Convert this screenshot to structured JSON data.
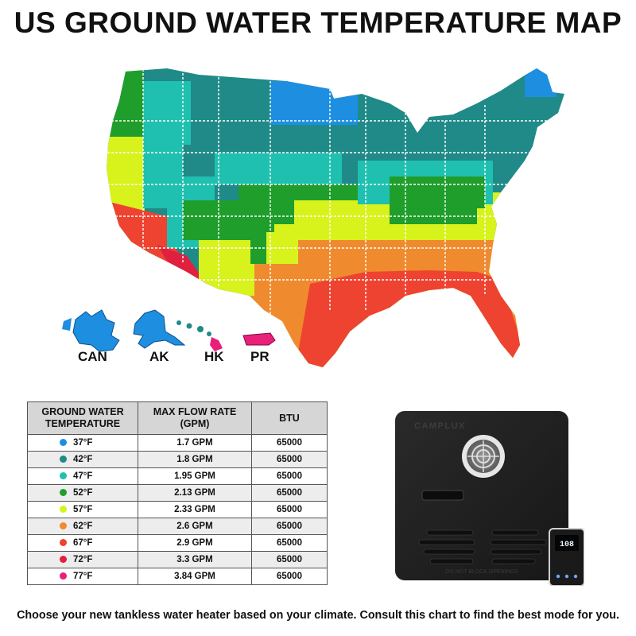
{
  "title": "US GROUND WATER TEMPERATURE MAP",
  "colors": {
    "37F": "#1e8fe0",
    "42F": "#1f8a87",
    "47F": "#20c0b0",
    "52F": "#1f9e2b",
    "57F": "#d8f21c",
    "62F": "#f08a2e",
    "67F": "#ee4330",
    "72F": "#e0203e",
    "77F": "#e8207a"
  },
  "map_labels": {
    "canada": "CAN",
    "alaska": "AK",
    "hawaii": "HK",
    "puerto_rico": "PR"
  },
  "table": {
    "headers": {
      "temperature": "GROUND WATER TEMPERATURE",
      "flow": "MAX FLOW RATE (GPM)",
      "btu": "BTU"
    },
    "rows": [
      {
        "temp": "37°F",
        "color": "#1e8fe0",
        "flow": "1.7 GPM",
        "btu": "65000"
      },
      {
        "temp": "42°F",
        "color": "#1f8a87",
        "flow": "1.8 GPM",
        "btu": "65000"
      },
      {
        "temp": "47°F",
        "color": "#20c0b0",
        "flow": "1.95 GPM",
        "btu": "65000"
      },
      {
        "temp": "52°F",
        "color": "#1f9e2b",
        "flow": "2.13 GPM",
        "btu": "65000"
      },
      {
        "temp": "57°F",
        "color": "#d8f21c",
        "flow": "2.33 GPM",
        "btu": "65000"
      },
      {
        "temp": "62°F",
        "color": "#f08a2e",
        "flow": "2.6 GPM",
        "btu": "65000"
      },
      {
        "temp": "67°F",
        "color": "#ee4330",
        "flow": "2.9 GPM",
        "btu": "65000"
      },
      {
        "temp": "72°F",
        "color": "#e0203e",
        "flow": "3.3 GPM",
        "btu": "65000"
      },
      {
        "temp": "77°F",
        "color": "#e8207a",
        "flow": "3.84 GPM",
        "btu": "65000"
      }
    ]
  },
  "heater": {
    "brand": "CAMPLUX",
    "warning": "DO NOT BLOCK OPENINGS",
    "display_value": "108"
  },
  "footer": "Choose your new tankless water heater based on your climate. Consult this chart to find the best mode for you."
}
